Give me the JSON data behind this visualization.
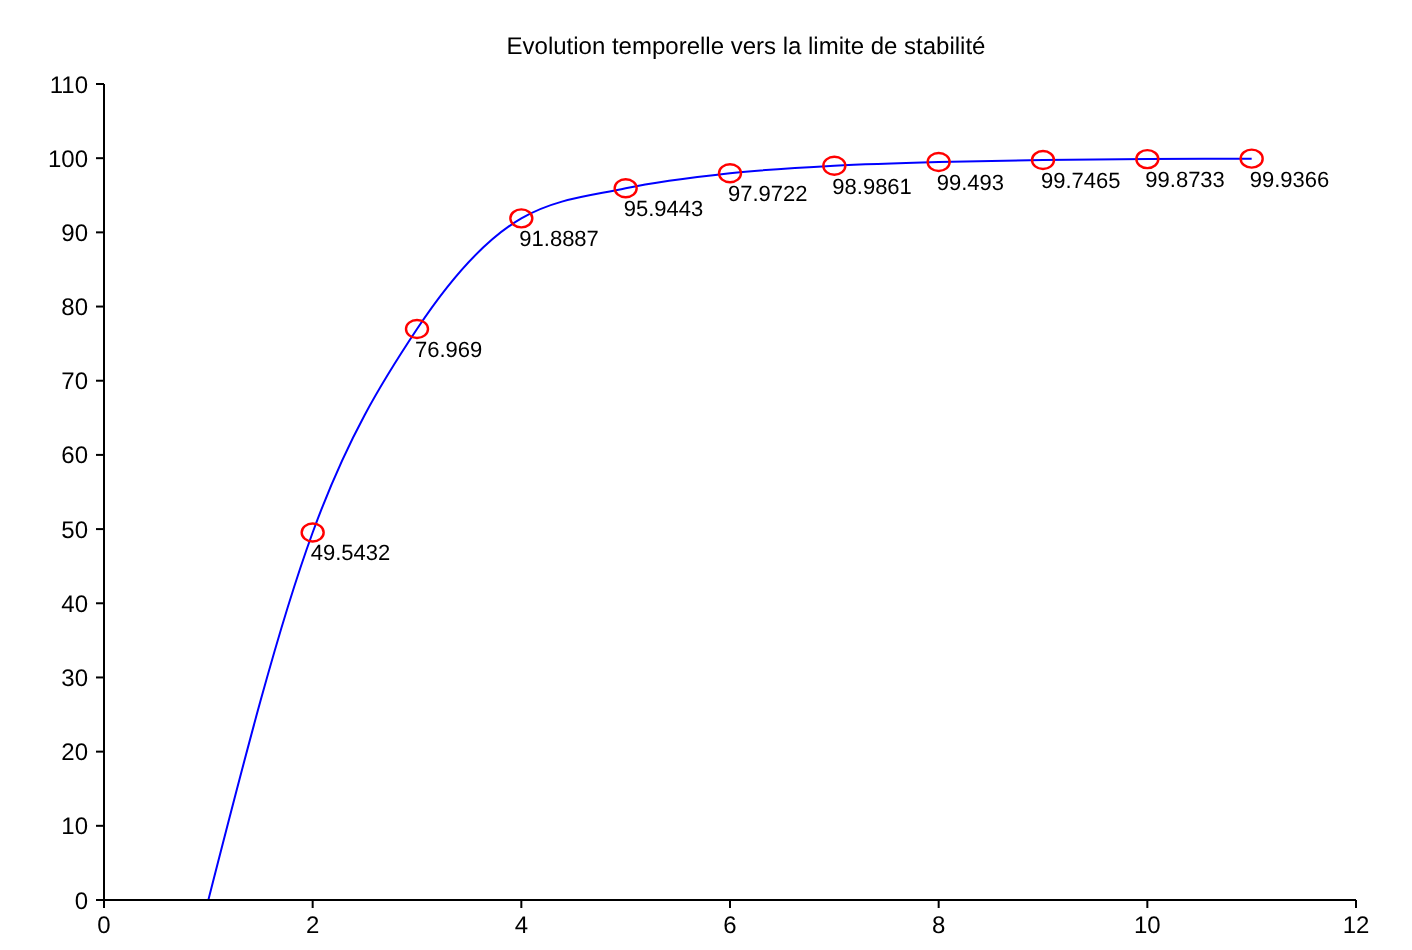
{
  "chart_data": {
    "type": "line",
    "title": "Evolution temporelle vers la limite de stabilité",
    "xlim": [
      0,
      12
    ],
    "xticks": [
      0,
      2,
      4,
      6,
      8,
      10,
      12
    ],
    "ylim": [
      0,
      110
    ],
    "yticks": [
      0,
      10,
      20,
      30,
      40,
      50,
      60,
      70,
      80,
      90,
      100,
      110
    ],
    "grid": false,
    "legend": false,
    "series": [
      {
        "color": "#0000ff",
        "marker": "none",
        "line_style": "solid",
        "x": [
          1,
          2,
          3,
          4,
          5,
          6,
          7,
          8,
          9,
          10,
          11
        ],
        "values": [
          0,
          49.5432,
          76.969,
          91.8887,
          95.9443,
          97.9722,
          98.9861,
          99.493,
          99.7465,
          99.8733,
          99.9366
        ]
      },
      {
        "type": "scatter",
        "color": "#ff0000",
        "marker": "circle",
        "data_labels": true,
        "x": [
          2,
          3,
          4,
          5,
          6,
          7,
          8,
          9,
          10,
          11
        ],
        "values": [
          49.5432,
          76.969,
          91.8887,
          95.9443,
          97.9722,
          98.9861,
          99.493,
          99.7465,
          99.8733,
          99.9366
        ]
      }
    ]
  }
}
